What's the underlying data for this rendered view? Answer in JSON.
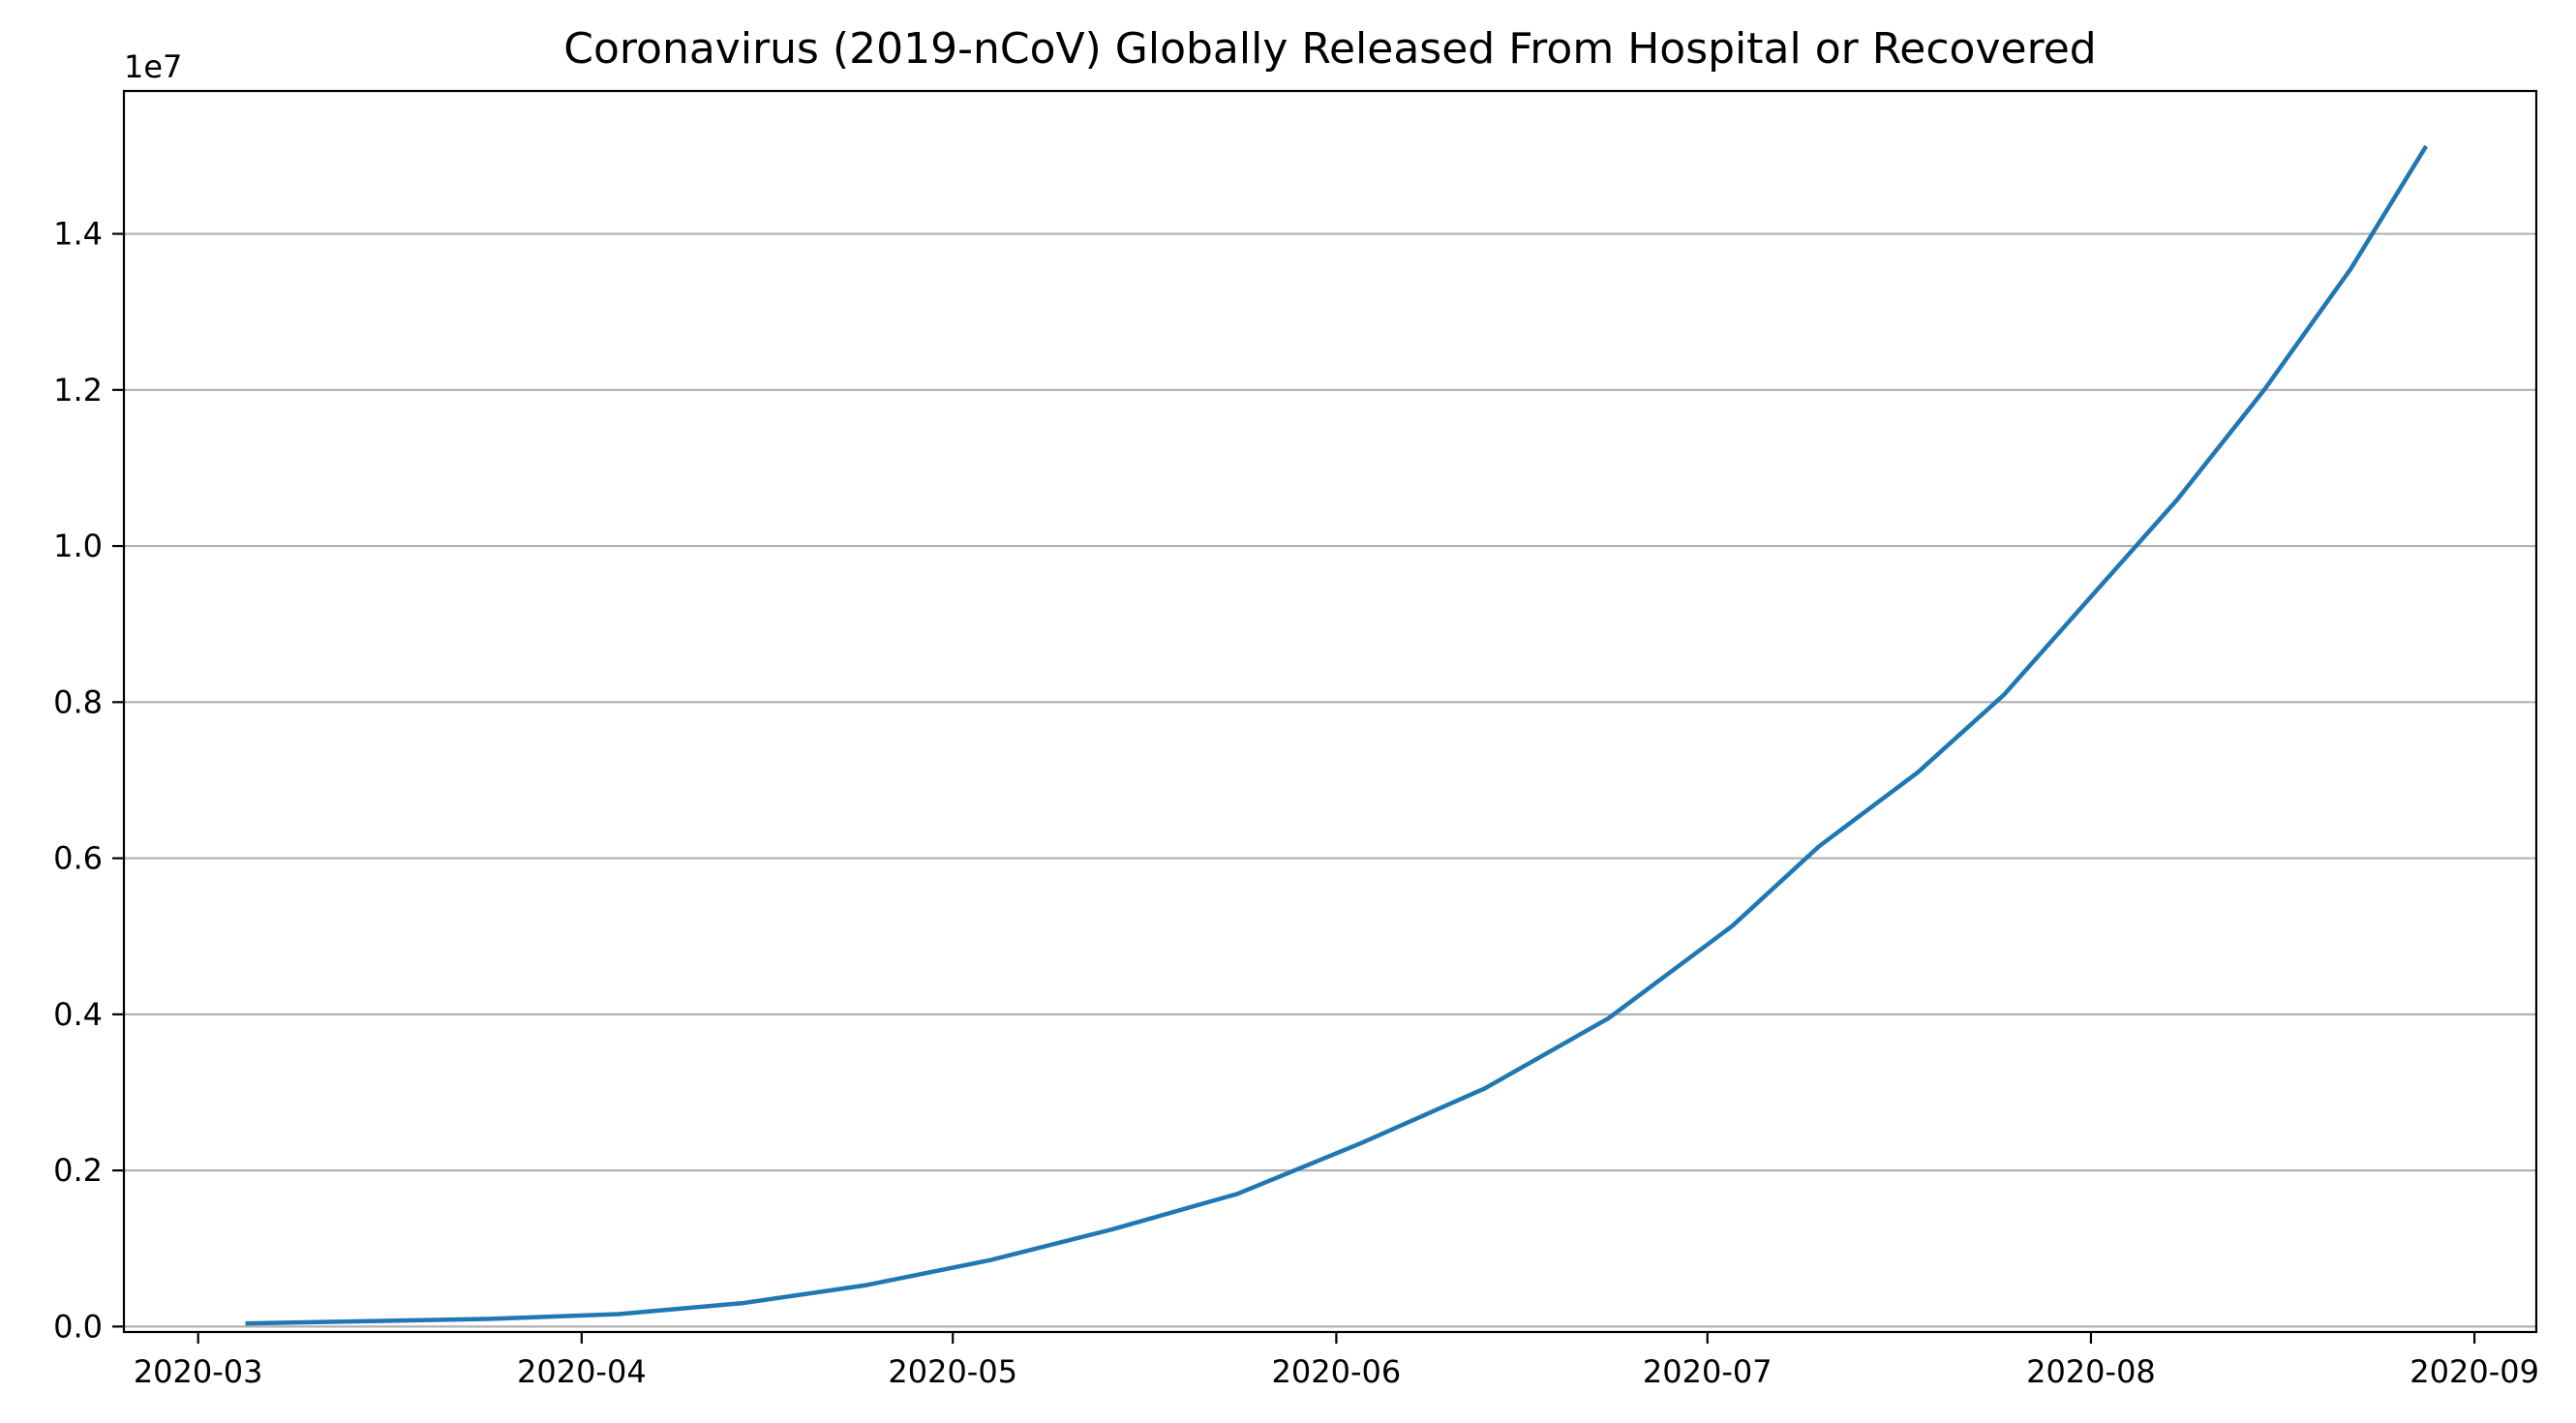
{
  "chart_data": {
    "type": "line",
    "title": "Coronavirus (2019-nCoV) Globally Released From Hospital or Recovered",
    "xlabel": "",
    "ylabel": "",
    "y_offset_label": "1e7",
    "y_scale_factor": 10000000,
    "xlim": [
      "2020-02-24",
      "2020-09-06"
    ],
    "ylim": [
      -70000,
      15830000
    ],
    "x_ticks": [
      "2020-03",
      "2020-04",
      "2020-05",
      "2020-06",
      "2020-07",
      "2020-08",
      "2020-09"
    ],
    "x_tick_dates": [
      "2020-03-01",
      "2020-04-01",
      "2020-05-01",
      "2020-06-01",
      "2020-07-01",
      "2020-08-01",
      "2020-09-01"
    ],
    "y_ticks": [
      0,
      2000000,
      4000000,
      6000000,
      8000000,
      10000000,
      12000000,
      14000000
    ],
    "y_tick_labels": [
      "0.0",
      "0.2",
      "0.4",
      "0.6",
      "0.8",
      "1.0",
      "1.2",
      "1.4"
    ],
    "grid": "horizontal",
    "line_color": "#1f77b4",
    "series": [
      {
        "x": [
          "2020-03-05",
          "2020-03-15",
          "2020-03-25",
          "2020-04-04",
          "2020-04-14",
          "2020-04-24",
          "2020-05-04",
          "2020-05-14",
          "2020-05-24",
          "2020-06-03",
          "2020-06-13",
          "2020-06-23",
          "2020-07-03",
          "2020-07-10",
          "2020-07-18",
          "2020-07-25",
          "2020-08-01",
          "2020-08-08",
          "2020-08-15",
          "2020-08-22",
          "2020-08-28"
        ],
        "values": [
          40000,
          70000,
          100000,
          160000,
          300000,
          530000,
          850000,
          1250000,
          1700000,
          2350000,
          3050000,
          3950000,
          5130000,
          6150000,
          7100000,
          8100000,
          9350000,
          10600000,
          12000000,
          13550000,
          15100000
        ]
      }
    ]
  }
}
